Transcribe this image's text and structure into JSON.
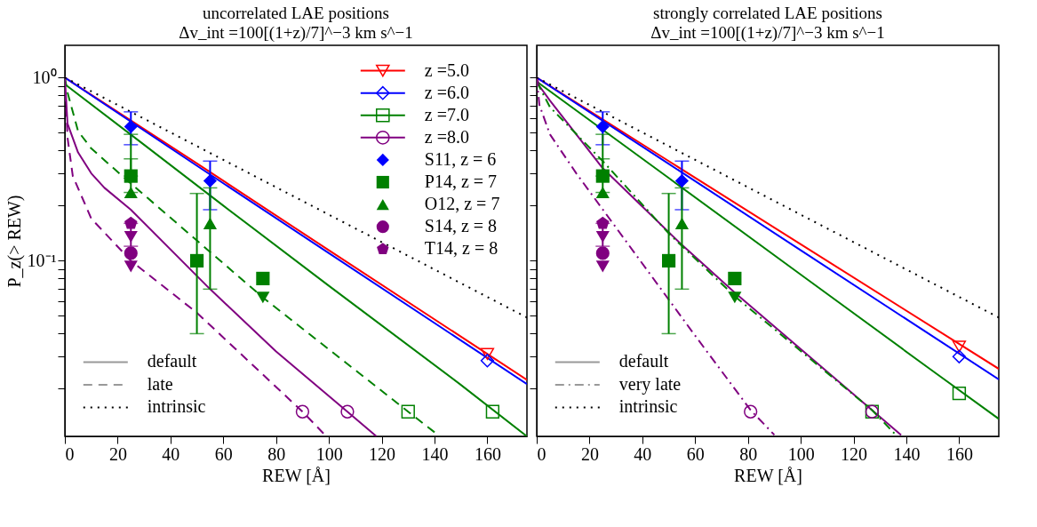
{
  "chart_data": [
    {
      "type": "line",
      "title": "uncorrelated LAE positions",
      "subtitle": "Δv_int =100[(1+z)/7]^−3 km s^−1",
      "xlabel": "REW [Å]",
      "ylabel": "P_z(> REW)",
      "log": "y",
      "legend": "top right",
      "xlim": [
        0,
        175
      ],
      "xticks": [
        0,
        20,
        40,
        60,
        80,
        100,
        120,
        140,
        160
      ],
      "ylim": [
        0.011,
        1.5
      ],
      "yticks": [
        {
          "value": 0.02,
          "label": null
        },
        {
          "value": 0.03,
          "label": null
        },
        {
          "value": 0.04,
          "label": null
        },
        {
          "value": 0.05,
          "label": null
        },
        {
          "value": 0.06,
          "label": null
        },
        {
          "value": 0.07,
          "label": null
        },
        {
          "value": 0.08,
          "label": null
        },
        {
          "value": 0.09,
          "label": null
        },
        {
          "value": 0.1,
          "label": "10⁻¹"
        },
        {
          "value": 0.2,
          "label": null
        },
        {
          "value": 0.3,
          "label": null
        },
        {
          "value": 0.4,
          "label": null
        },
        {
          "value": 0.5,
          "label": null
        },
        {
          "value": 0.6,
          "label": null
        },
        {
          "value": 0.7,
          "label": null
        },
        {
          "value": 0.8,
          "label": null
        },
        {
          "value": 0.9,
          "label": null
        },
        {
          "value": 1,
          "label": "10⁰"
        }
      ],
      "annotations": [
        "default",
        "late"
      ],
      "series": [
        {
          "name": "z =5.0",
          "color": "#ff0000",
          "line_style": "solid",
          "x": [
            0,
            50,
            100,
            175
          ],
          "values": [
            1,
            0.34,
            0.114,
            0.0224
          ]
        },
        {
          "name": "z =6.0",
          "color": "#0000ff",
          "line_style": "solid",
          "x": [
            0,
            50,
            100,
            175
          ],
          "values": [
            1,
            0.33,
            0.11,
            0.0212
          ]
        },
        {
          "name": "z =7.0",
          "color": "#008000",
          "line_style": "solid",
          "x": [
            0,
            30,
            60,
            100,
            150,
            175
          ],
          "values": [
            0.92,
            0.43,
            0.2,
            0.073,
            0.021,
            0.011
          ]
        },
        {
          "name": "z =8.0",
          "color": "#800080",
          "line_style": "solid",
          "x": [
            0,
            1,
            5,
            10,
            15,
            25,
            55,
            80,
            107,
            118
          ],
          "values": [
            1,
            0.56,
            0.39,
            0.3,
            0.25,
            0.19,
            0.07,
            0.032,
            0.015,
            0.011
          ]
        },
        {
          "color": "#008000",
          "line_style": "dashed",
          "x": [
            0,
            1,
            5,
            10,
            25,
            75,
            130,
            142
          ],
          "values": [
            1,
            0.83,
            0.51,
            0.41,
            0.264,
            0.063,
            0.015,
            0.011
          ]
        },
        {
          "color": "#800080",
          "line_style": "dashed",
          "x": [
            0,
            1,
            3,
            10,
            25,
            50,
            90,
            99
          ],
          "values": [
            1,
            0.47,
            0.29,
            0.17,
            0.1,
            0.052,
            0.015,
            0.011
          ]
        },
        {
          "name": "intrinsic",
          "color": "#000000",
          "line_style": "dotted",
          "x": [
            0,
            175
          ],
          "values": [
            1,
            0.049
          ]
        },
        {
          "type": "scatter",
          "color": "#ff0000",
          "marker": "triangle-down",
          "x": [
            160
          ],
          "values": [
            0.031
          ]
        },
        {
          "type": "scatter",
          "color": "#0000ff",
          "marker": "diamond",
          "x": [
            160
          ],
          "values": [
            0.0285
          ]
        },
        {
          "type": "scatter",
          "color": "#008000",
          "marker": "square",
          "x": [
            130,
            162
          ],
          "values": [
            0.015,
            0.015
          ]
        },
        {
          "type": "scatter",
          "color": "#800080",
          "marker": "circle",
          "x": [
            90,
            107
          ],
          "values": [
            0.015,
            0.015
          ]
        },
        {
          "name": "S11, z = 6",
          "type": "scatter",
          "color": "#0000ff",
          "marker": "diamond",
          "x": [
            25,
            55
          ],
          "values": [
            0.54,
            0.273
          ],
          "errors": [
            [
              0.43,
              0.65
            ],
            [
              0.19,
              0.35
            ]
          ]
        },
        {
          "name": "P14, z = 7",
          "type": "scatter",
          "color": "#008000",
          "marker": "square",
          "x": [
            25,
            50,
            75
          ],
          "values": [
            0.29,
            0.1,
            0.08
          ],
          "errors": [
            [
              0.29,
              0.36
            ],
            [
              0.04,
              0.233
            ],
            null
          ]
        },
        {
          "name": "O12, z = 7",
          "type": "scatter",
          "color": "#008000",
          "marker": "triangle",
          "x": [
            25,
            55
          ],
          "values": [
            0.236,
            0.16
          ],
          "errors": [
            [
              0.236,
              0.49
            ],
            [
              0.07,
              0.25
            ]
          ]
        },
        {
          "name": "S14, z = 8",
          "type": "scatter",
          "color": "#800080",
          "marker": "circle",
          "x": [
            25
          ],
          "values": [
            0.11
          ]
        },
        {
          "name": "T14, z = 8",
          "type": "scatter",
          "color": "#800080",
          "x": [
            25
          ],
          "values": [
            0.16
          ],
          "errors": [
            [
              0.12,
              0.16
            ]
          ]
        },
        {
          "type": "scatter",
          "color": "#008000",
          "marker": "triangle-down",
          "x": [
            75
          ],
          "values": [
            0.063
          ]
        },
        {
          "type": "scatter",
          "color": "#800080",
          "marker": "triangle-down",
          "x": [
            25,
            25
          ],
          "values": [
            0.135,
            0.093
          ]
        }
      ]
    },
    {
      "type": "line",
      "title": "strongly correlated LAE positions",
      "subtitle": "Δv_int =100[(1+z)/7]^−3 km s^−1",
      "xlabel": "REW [Å]",
      "log": "y",
      "legend": "bottom left",
      "tick_labels": "x",
      "xlim": [
        0,
        175
      ],
      "xticks": [
        0,
        20,
        40,
        60,
        80,
        100,
        120,
        140,
        160
      ],
      "ylim": [
        0.011,
        1.5
      ],
      "yticks": [
        {
          "value": 0.02,
          "label": null
        },
        {
          "value": 0.03,
          "label": null
        },
        {
          "value": 0.04,
          "label": null
        },
        {
          "value": 0.05,
          "label": null
        },
        {
          "value": 0.06,
          "label": null
        },
        {
          "value": 0.07,
          "label": null
        },
        {
          "value": 0.08,
          "label": null
        },
        {
          "value": 0.09,
          "label": null
        },
        {
          "value": 0.1,
          "label": null
        },
        {
          "value": 0.2,
          "label": null
        },
        {
          "value": 0.3,
          "label": null
        },
        {
          "value": 0.4,
          "label": null
        },
        {
          "value": 0.5,
          "label": null
        },
        {
          "value": 0.6,
          "label": null
        },
        {
          "value": 0.7,
          "label": null
        },
        {
          "value": 0.8,
          "label": null
        },
        {
          "value": 0.9,
          "label": null
        },
        {
          "value": 1,
          "label": null
        }
      ],
      "annotations": [
        "default",
        "very late"
      ],
      "series": [
        {
          "color": "#ff0000",
          "line_style": "solid",
          "x": [
            0,
            50,
            100,
            175
          ],
          "values": [
            1,
            0.35,
            0.123,
            0.0257
          ]
        },
        {
          "color": "#0000ff",
          "line_style": "solid",
          "x": [
            0,
            50,
            100,
            175
          ],
          "values": [
            1,
            0.338,
            0.114,
            0.0225
          ]
        },
        {
          "color": "#008000",
          "line_style": "solid",
          "x": [
            0,
            50,
            100,
            150,
            175
          ],
          "values": [
            0.95,
            0.283,
            0.084,
            0.025,
            0.0137
          ]
        },
        {
          "color": "#800080",
          "line_style": "solid",
          "x": [
            0,
            1,
            5,
            25,
            55,
            75,
            127,
            138
          ],
          "values": [
            1,
            0.9,
            0.75,
            0.32,
            0.122,
            0.067,
            0.0153,
            0.0112
          ]
        },
        {
          "color": "#008000",
          "line_style": "dashdot",
          "x": [
            0,
            5,
            25,
            50,
            75,
            127,
            136
          ],
          "values": [
            0.95,
            0.69,
            0.35,
            0.141,
            0.064,
            0.0153,
            0.0112
          ]
        },
        {
          "color": "#800080",
          "line_style": "dashdot",
          "x": [
            0,
            1,
            5,
            15,
            30,
            60,
            81,
            90
          ],
          "values": [
            1,
            0.71,
            0.49,
            0.3,
            0.152,
            0.039,
            0.0153,
            0.0112
          ]
        },
        {
          "name": "intrinsic",
          "color": "#000000",
          "line_style": "dotted",
          "x": [
            0,
            175
          ],
          "values": [
            1,
            0.049
          ]
        },
        {
          "type": "scatter",
          "color": "#ff0000",
          "marker": "triangle-down",
          "x": [
            160
          ],
          "values": [
            0.034
          ]
        },
        {
          "type": "scatter",
          "color": "#0000ff",
          "marker": "diamond",
          "x": [
            160
          ],
          "values": [
            0.03
          ]
        },
        {
          "type": "scatter",
          "color": "#008000",
          "marker": "square",
          "x": [
            127,
            160
          ],
          "values": [
            0.015,
            0.0189
          ]
        },
        {
          "type": "scatter",
          "color": "#800080",
          "marker": "circle",
          "x": [
            81,
            127
          ],
          "values": [
            0.015,
            0.015
          ]
        },
        {
          "type": "scatter",
          "color": "#0000ff",
          "marker": "diamond",
          "x": [
            25,
            55
          ],
          "values": [
            0.54,
            0.273
          ],
          "errors": [
            [
              0.43,
              0.65
            ],
            [
              0.19,
              0.35
            ]
          ]
        },
        {
          "type": "scatter",
          "color": "#008000",
          "marker": "square",
          "x": [
            25,
            50,
            75
          ],
          "values": [
            0.29,
            0.1,
            0.08
          ],
          "errors": [
            [
              0.29,
              0.36
            ],
            [
              0.04,
              0.233
            ],
            null
          ]
        },
        {
          "type": "scatter",
          "color": "#008000",
          "marker": "triangle",
          "x": [
            25,
            55
          ],
          "values": [
            0.236,
            0.16
          ],
          "errors": [
            [
              0.236,
              0.49
            ],
            [
              0.07,
              0.25
            ]
          ]
        },
        {
          "type": "scatter",
          "color": "#800080",
          "marker": "circle",
          "x": [
            25
          ],
          "values": [
            0.11
          ]
        },
        {
          "type": "scatter",
          "color": "#800080",
          "x": [
            25
          ],
          "values": [
            0.16
          ],
          "errors": [
            [
              0.12,
              0.16
            ]
          ]
        },
        {
          "type": "scatter",
          "color": "#008000",
          "marker": "triangle-down",
          "x": [
            75
          ],
          "values": [
            0.063
          ]
        },
        {
          "type": "scatter",
          "color": "#800080",
          "marker": "triangle-down",
          "x": [
            25,
            25
          ],
          "values": [
            0.135,
            0.093
          ]
        }
      ]
    }
  ]
}
